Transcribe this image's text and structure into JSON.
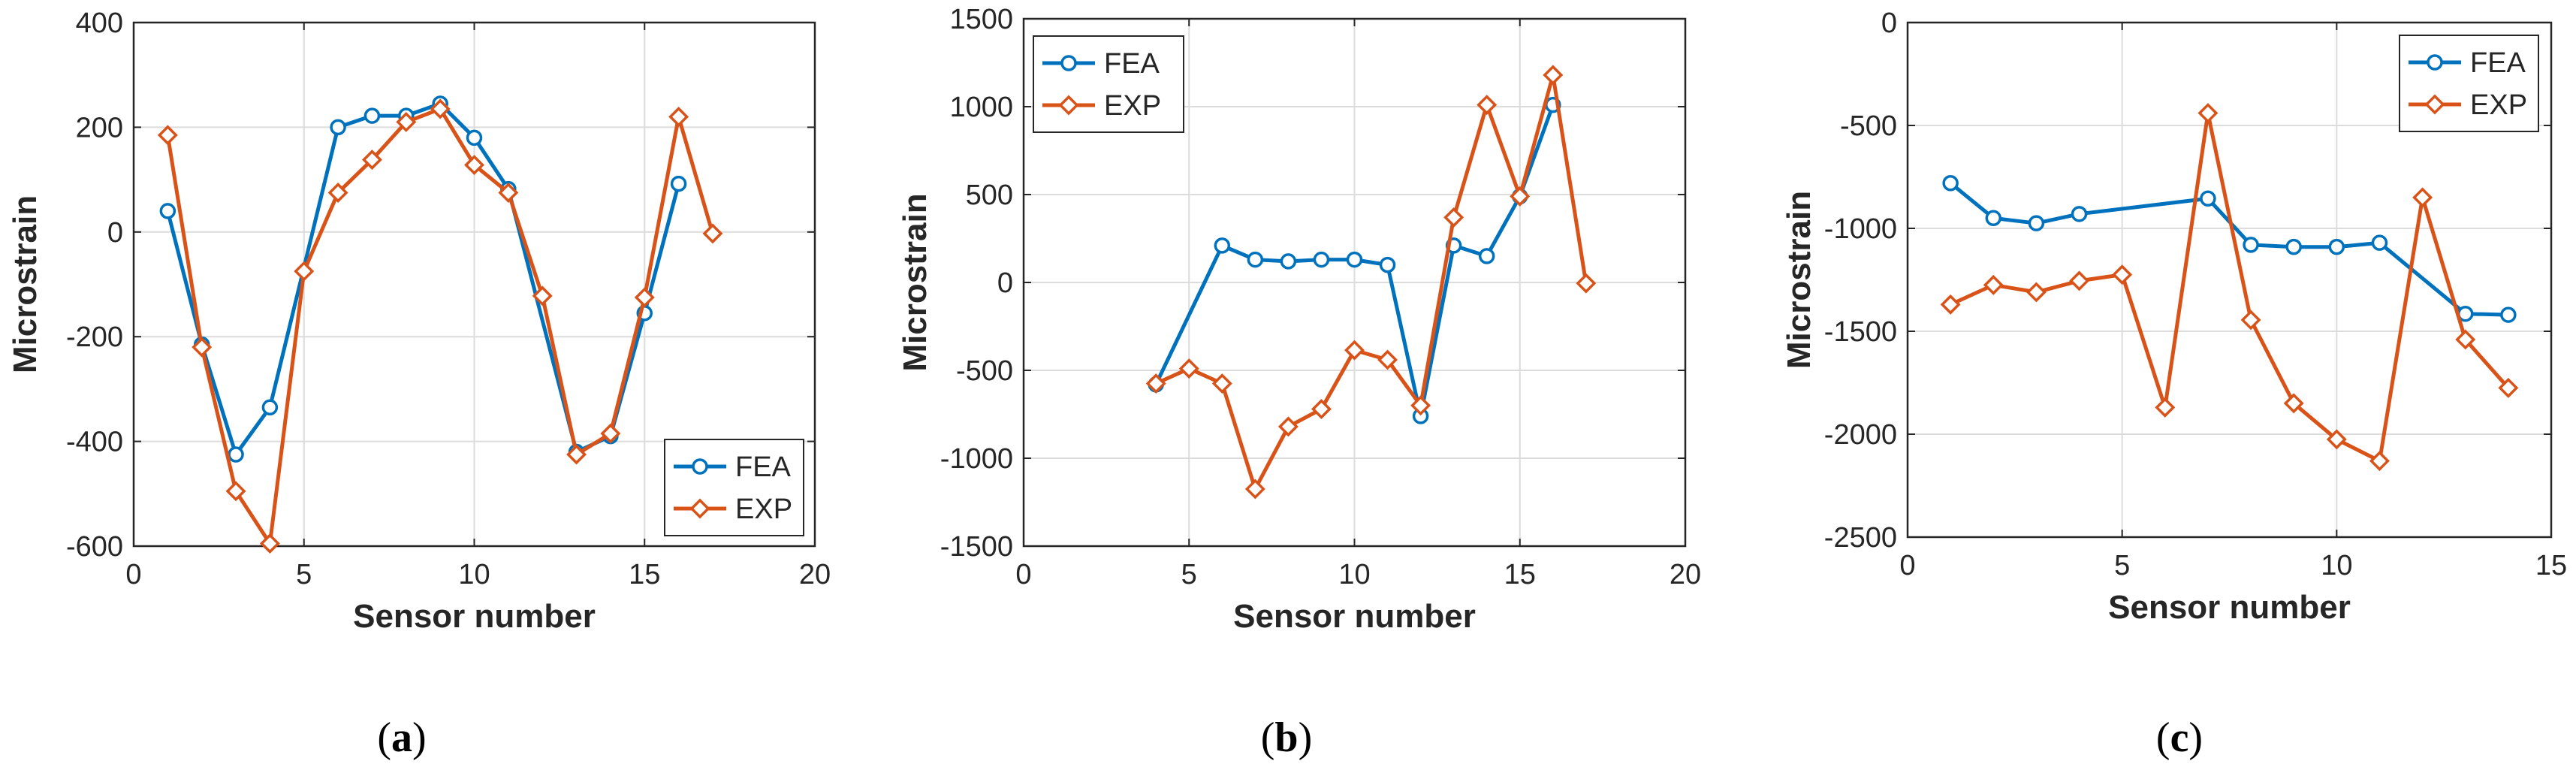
{
  "chart_data": [
    {
      "type": "line",
      "panel_label": "a",
      "xlabel": "Sensor number",
      "ylabel": "Microstrain",
      "xlim": [
        0,
        20
      ],
      "ylim": [
        -600,
        400
      ],
      "xticks": [
        0,
        5,
        10,
        15,
        20
      ],
      "yticks": [
        -600,
        -400,
        -200,
        0,
        200,
        400
      ],
      "grid": true,
      "legend_position": "bottom-right",
      "series": [
        {
          "name": "FEA",
          "color": "#0072BD",
          "marker": "circle",
          "x": [
            1,
            2,
            3,
            4,
            6,
            7,
            8,
            9,
            10,
            11,
            13,
            14,
            15,
            16
          ],
          "y": [
            40,
            -215,
            -425,
            -335,
            200,
            222,
            222,
            245,
            180,
            82,
            -420,
            -390,
            -155,
            92
          ]
        },
        {
          "name": "EXP",
          "color": "#D95319",
          "marker": "diamond",
          "x": [
            1,
            2,
            3,
            4,
            5,
            6,
            7,
            8,
            9,
            10,
            11,
            12,
            13,
            14,
            15,
            16,
            17
          ],
          "y": [
            185,
            -220,
            -495,
            -595,
            -75,
            75,
            138,
            210,
            235,
            128,
            75,
            -122,
            -425,
            -385,
            -125,
            220,
            -3
          ]
        }
      ]
    },
    {
      "type": "line",
      "panel_label": "b",
      "xlabel": "Sensor number",
      "ylabel": "Microstrain",
      "xlim": [
        0,
        20
      ],
      "ylim": [
        -1500,
        1500
      ],
      "xticks": [
        0,
        5,
        10,
        15,
        20
      ],
      "yticks": [
        -1500,
        -1000,
        -500,
        0,
        500,
        1000,
        1500
      ],
      "grid": true,
      "legend_position": "top-left",
      "series": [
        {
          "name": "FEA",
          "color": "#0072BD",
          "marker": "circle",
          "x": [
            4,
            6,
            7,
            8,
            9,
            10,
            11,
            12,
            13,
            14,
            15,
            16
          ],
          "y": [
            -580,
            210,
            130,
            120,
            130,
            130,
            100,
            -760,
            210,
            150,
            490,
            1010
          ]
        },
        {
          "name": "EXP",
          "color": "#D95319",
          "marker": "diamond",
          "x": [
            4,
            5,
            6,
            7,
            8,
            9,
            10,
            11,
            12,
            13,
            14,
            15,
            16,
            17
          ],
          "y": [
            -575,
            -490,
            -575,
            -1175,
            -820,
            -720,
            -385,
            -440,
            -700,
            370,
            1010,
            490,
            1180,
            -5
          ]
        }
      ]
    },
    {
      "type": "line",
      "panel_label": "c",
      "xlabel": "Sensor number",
      "ylabel": "Microstrain",
      "xlim": [
        0,
        15
      ],
      "ylim": [
        -2500,
        0
      ],
      "xticks": [
        0,
        5,
        10,
        15
      ],
      "yticks": [
        -2500,
        -2000,
        -1500,
        -1000,
        -500,
        0
      ],
      "grid": true,
      "legend_position": "top-right",
      "series": [
        {
          "name": "FEA",
          "color": "#0072BD",
          "marker": "circle",
          "x": [
            1,
            2,
            3,
            4,
            7,
            8,
            9,
            10,
            11,
            13,
            14
          ],
          "y": [
            -780,
            -950,
            -975,
            -930,
            -855,
            -1080,
            -1090,
            -1090,
            -1070,
            -1415,
            -1420
          ]
        },
        {
          "name": "EXP",
          "color": "#D95319",
          "marker": "diamond",
          "x": [
            1,
            2,
            3,
            4,
            5,
            6,
            7,
            8,
            9,
            10,
            11,
            12,
            13,
            14
          ],
          "y": [
            -1370,
            -1275,
            -1310,
            -1255,
            -1225,
            -1870,
            -440,
            -1445,
            -1850,
            -2025,
            -2130,
            -850,
            -1540,
            -1775
          ]
        }
      ]
    }
  ]
}
